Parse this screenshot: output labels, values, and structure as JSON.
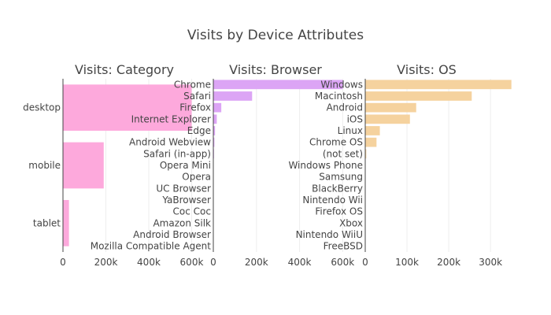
{
  "chart_data": {
    "type": "bar",
    "orientation": "horizontal",
    "title": "Visits by Device Attributes",
    "grid": true,
    "legend": "none",
    "panels": [
      {
        "subtitle": "Visits: Category",
        "color": "#fda9dc",
        "categories": [
          "desktop",
          "mobile",
          "tablet"
        ],
        "values": [
          600000,
          190000,
          28000
        ],
        "xlim": [
          0,
          690000
        ],
        "xticks": [
          0,
          200000,
          400000,
          600000
        ],
        "xtick_labels": [
          "0",
          "200k",
          "400k",
          "600k"
        ]
      },
      {
        "subtitle": "Visits: Browser",
        "color": "#dca5f5",
        "categories": [
          "Chrome",
          "Safari",
          "Firefox",
          "Internet Explorer",
          "Edge",
          "Android Webview",
          "Safari (in-app)",
          "Opera Mini",
          "Opera",
          "UC Browser",
          "YaBrowser",
          "Coc Coc",
          "Amazon Silk",
          "Android Browser",
          "Mozilla Compatible Agent"
        ],
        "values": [
          600000,
          180000,
          37000,
          16000,
          8000,
          5000,
          3000,
          1500,
          1200,
          800,
          600,
          400,
          300,
          250,
          200
        ],
        "xlim": [
          0,
          690000
        ],
        "xticks": [
          0,
          200000,
          400000,
          600000
        ],
        "xtick_labels": [
          "0",
          "200k",
          "400k",
          "600k"
        ]
      },
      {
        "subtitle": "Visits: OS",
        "color": "#f5d29e",
        "categories": [
          "Windows",
          "Macintosh",
          "Android",
          "iOS",
          "Linux",
          "Chrome OS",
          "(not set)",
          "Windows Phone",
          "Samsung",
          "BlackBerry",
          "Nintendo Wii",
          "Firefox OS",
          "Xbox",
          "Nintendo WiiU",
          "FreeBSD"
        ],
        "values": [
          350000,
          255000,
          122000,
          107000,
          35000,
          27000,
          2500,
          700,
          400,
          300,
          200,
          150,
          100,
          80,
          50
        ],
        "xlim": [
          0,
          360000
        ],
        "xticks": [
          0,
          100000,
          200000,
          300000
        ],
        "xtick_labels": [
          "0",
          "100k",
          "200k",
          "300k"
        ]
      }
    ]
  }
}
